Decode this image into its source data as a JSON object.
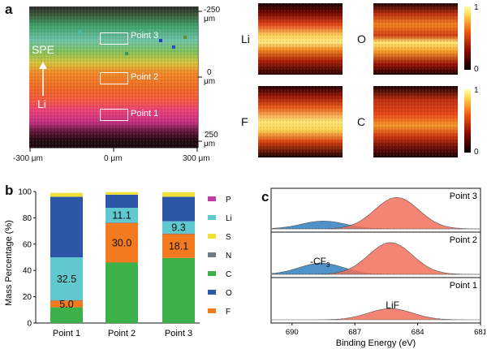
{
  "panels": {
    "a": "a",
    "b": "b",
    "c": "c"
  },
  "panel_a": {
    "ticks_right": [
      "-250",
      "μm",
      "0",
      "μm",
      "250",
      "μm"
    ],
    "ticks_bottom": [
      "-300 μm",
      "0 μm",
      "300 μm"
    ],
    "labels": {
      "spe": "SPE",
      "li": "Li"
    },
    "points": [
      "Point 3",
      "Point 2",
      "Point 1"
    ],
    "maps": [
      {
        "label": "Li"
      },
      {
        "label": "O"
      },
      {
        "label": "F"
      },
      {
        "label": "C"
      }
    ],
    "colorbar": {
      "max": "1",
      "min": "0"
    }
  },
  "chart_data": [
    {
      "type": "bar",
      "stacked": true,
      "ylabel": "Mass Percentage (%)",
      "ylim": [
        0,
        100
      ],
      "yticks": [
        "0",
        "20",
        "40",
        "60",
        "80",
        "100"
      ],
      "categories": [
        "Point 1",
        "Point 2",
        "Point 3"
      ],
      "series": [
        {
          "name": "C",
          "color": "#3cb14a",
          "values": [
            12,
            46,
            49.5
          ]
        },
        {
          "name": "F",
          "color": "#f47a20",
          "values": [
            5,
            30,
            18.1
          ]
        },
        {
          "name": "N",
          "color": "#6f7a82",
          "values": [
            0.5,
            0.5,
            0.5
          ]
        },
        {
          "name": "Li",
          "color": "#5fc9cf",
          "values": [
            32.5,
            11.1,
            9.3
          ]
        },
        {
          "name": "O",
          "color": "#2e56a6",
          "values": [
            46,
            10,
            18.6
          ]
        },
        {
          "name": "S",
          "color": "#f2e03a",
          "values": [
            3,
            2,
            3.5
          ]
        },
        {
          "name": "P",
          "color": "#c13ca5",
          "values": [
            0,
            0,
            0
          ]
        }
      ],
      "data_labels": [
        {
          "category": "Point 1",
          "series": "Li",
          "text": "32.5"
        },
        {
          "category": "Point 1",
          "series": "F",
          "text": "5.0"
        },
        {
          "category": "Point 2",
          "series": "Li",
          "text": "11.1"
        },
        {
          "category": "Point 2",
          "series": "F",
          "text": "30.0"
        },
        {
          "category": "Point 3",
          "series": "Li",
          "text": "9.3"
        },
        {
          "category": "Point 3",
          "series": "F",
          "text": "18.1"
        }
      ],
      "legend": [
        "P",
        "Li",
        "S",
        "N",
        "C",
        "O",
        "F"
      ],
      "legend_placement": "right"
    },
    {
      "type": "line",
      "xlabel": "Binding Energy (eV)",
      "xlim": [
        691,
        681
      ],
      "xticks": [
        "690",
        "687",
        "684",
        "681"
      ],
      "subplots": [
        {
          "title": "Point 3",
          "peaks": [
            {
              "name": "-CF3",
              "center": 688.5,
              "height": 0.22,
              "color": "#2f7fbf"
            },
            {
              "name": "LiF",
              "center": 685.0,
              "height": 0.88,
              "color": "#f26e5b"
            }
          ]
        },
        {
          "title": "Point 2",
          "peaks": [
            {
              "name": "-CF3",
              "center": 688.6,
              "height": 0.3,
              "color": "#2f7fbf"
            },
            {
              "name": "LiF",
              "center": 685.3,
              "height": 0.85,
              "color": "#f26e5b"
            }
          ]
        },
        {
          "title": "Point 1",
          "peaks": [
            {
              "name": "LiF",
              "center": 685.3,
              "height": 0.3,
              "color": "#f26e5b"
            }
          ]
        }
      ],
      "annotations": [
        {
          "text": "-CF",
          "subscript": "3"
        },
        {
          "text": "LiF"
        }
      ]
    }
  ]
}
